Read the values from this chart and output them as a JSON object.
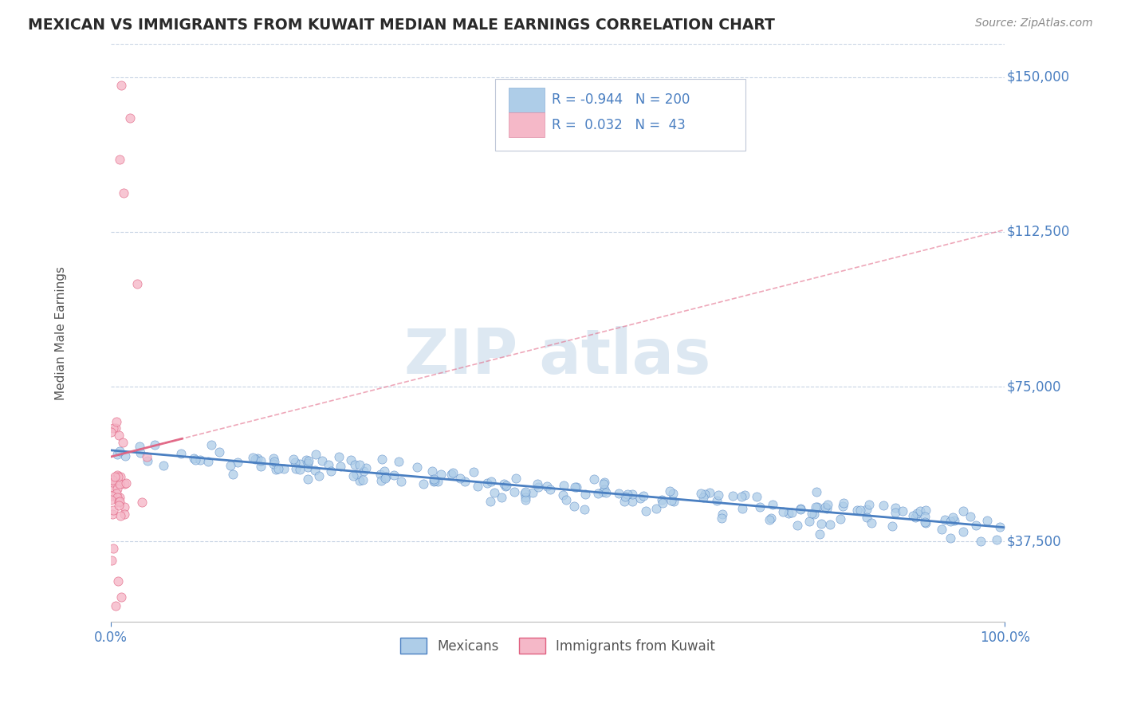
{
  "title": "MEXICAN VS IMMIGRANTS FROM KUWAIT MEDIAN MALE EARNINGS CORRELATION CHART",
  "source": "Source: ZipAtlas.com",
  "ylabel": "Median Male Earnings",
  "yticks": [
    37500,
    75000,
    112500,
    150000
  ],
  "ytick_labels": [
    "$37,500",
    "$75,000",
    "$112,500",
    "$150,000"
  ],
  "xlim": [
    0,
    1.0
  ],
  "ylim": [
    18000,
    158000
  ],
  "blue_R": -0.944,
  "blue_N": 200,
  "pink_R": 0.032,
  "pink_N": 43,
  "legend_label_blue": "Mexicans",
  "legend_label_pink": "Immigrants from Kuwait",
  "blue_color": "#aecde8",
  "pink_color": "#f5b8c8",
  "blue_line_color": "#4a7fc1",
  "pink_line_color": "#e06080",
  "axis_color": "#4a7fc1",
  "background_color": "#ffffff",
  "grid_color": "#c8d4e4",
  "watermark_color": "#dde8f2"
}
